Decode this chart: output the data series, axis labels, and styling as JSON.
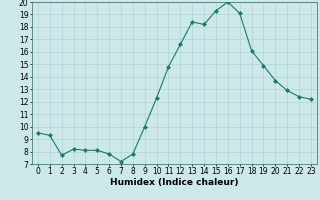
{
  "x": [
    0,
    1,
    2,
    3,
    4,
    5,
    6,
    7,
    8,
    9,
    10,
    11,
    12,
    13,
    14,
    15,
    16,
    17,
    18,
    19,
    20,
    21,
    22,
    23
  ],
  "y": [
    9.5,
    9.3,
    7.7,
    8.2,
    8.1,
    8.1,
    7.8,
    7.2,
    7.8,
    10.0,
    12.3,
    14.8,
    16.6,
    18.4,
    18.2,
    19.3,
    20.0,
    19.1,
    16.1,
    14.9,
    13.7,
    12.9,
    12.4,
    12.2
  ],
  "line_color": "#1a7a6e",
  "marker_color": "#1a7a6e",
  "bg_color": "#cce8e8",
  "grid_color": "#b0d4d4",
  "xlabel": "Humidex (Indice chaleur)",
  "ylim": [
    7,
    20
  ],
  "xlim": [
    -0.5,
    23.5
  ],
  "yticks": [
    7,
    8,
    9,
    10,
    11,
    12,
    13,
    14,
    15,
    16,
    17,
    18,
    19,
    20
  ],
  "xticks": [
    0,
    1,
    2,
    3,
    4,
    5,
    6,
    7,
    8,
    9,
    10,
    11,
    12,
    13,
    14,
    15,
    16,
    17,
    18,
    19,
    20,
    21,
    22,
    23
  ],
  "label_fontsize": 6.5,
  "tick_fontsize": 5.5
}
